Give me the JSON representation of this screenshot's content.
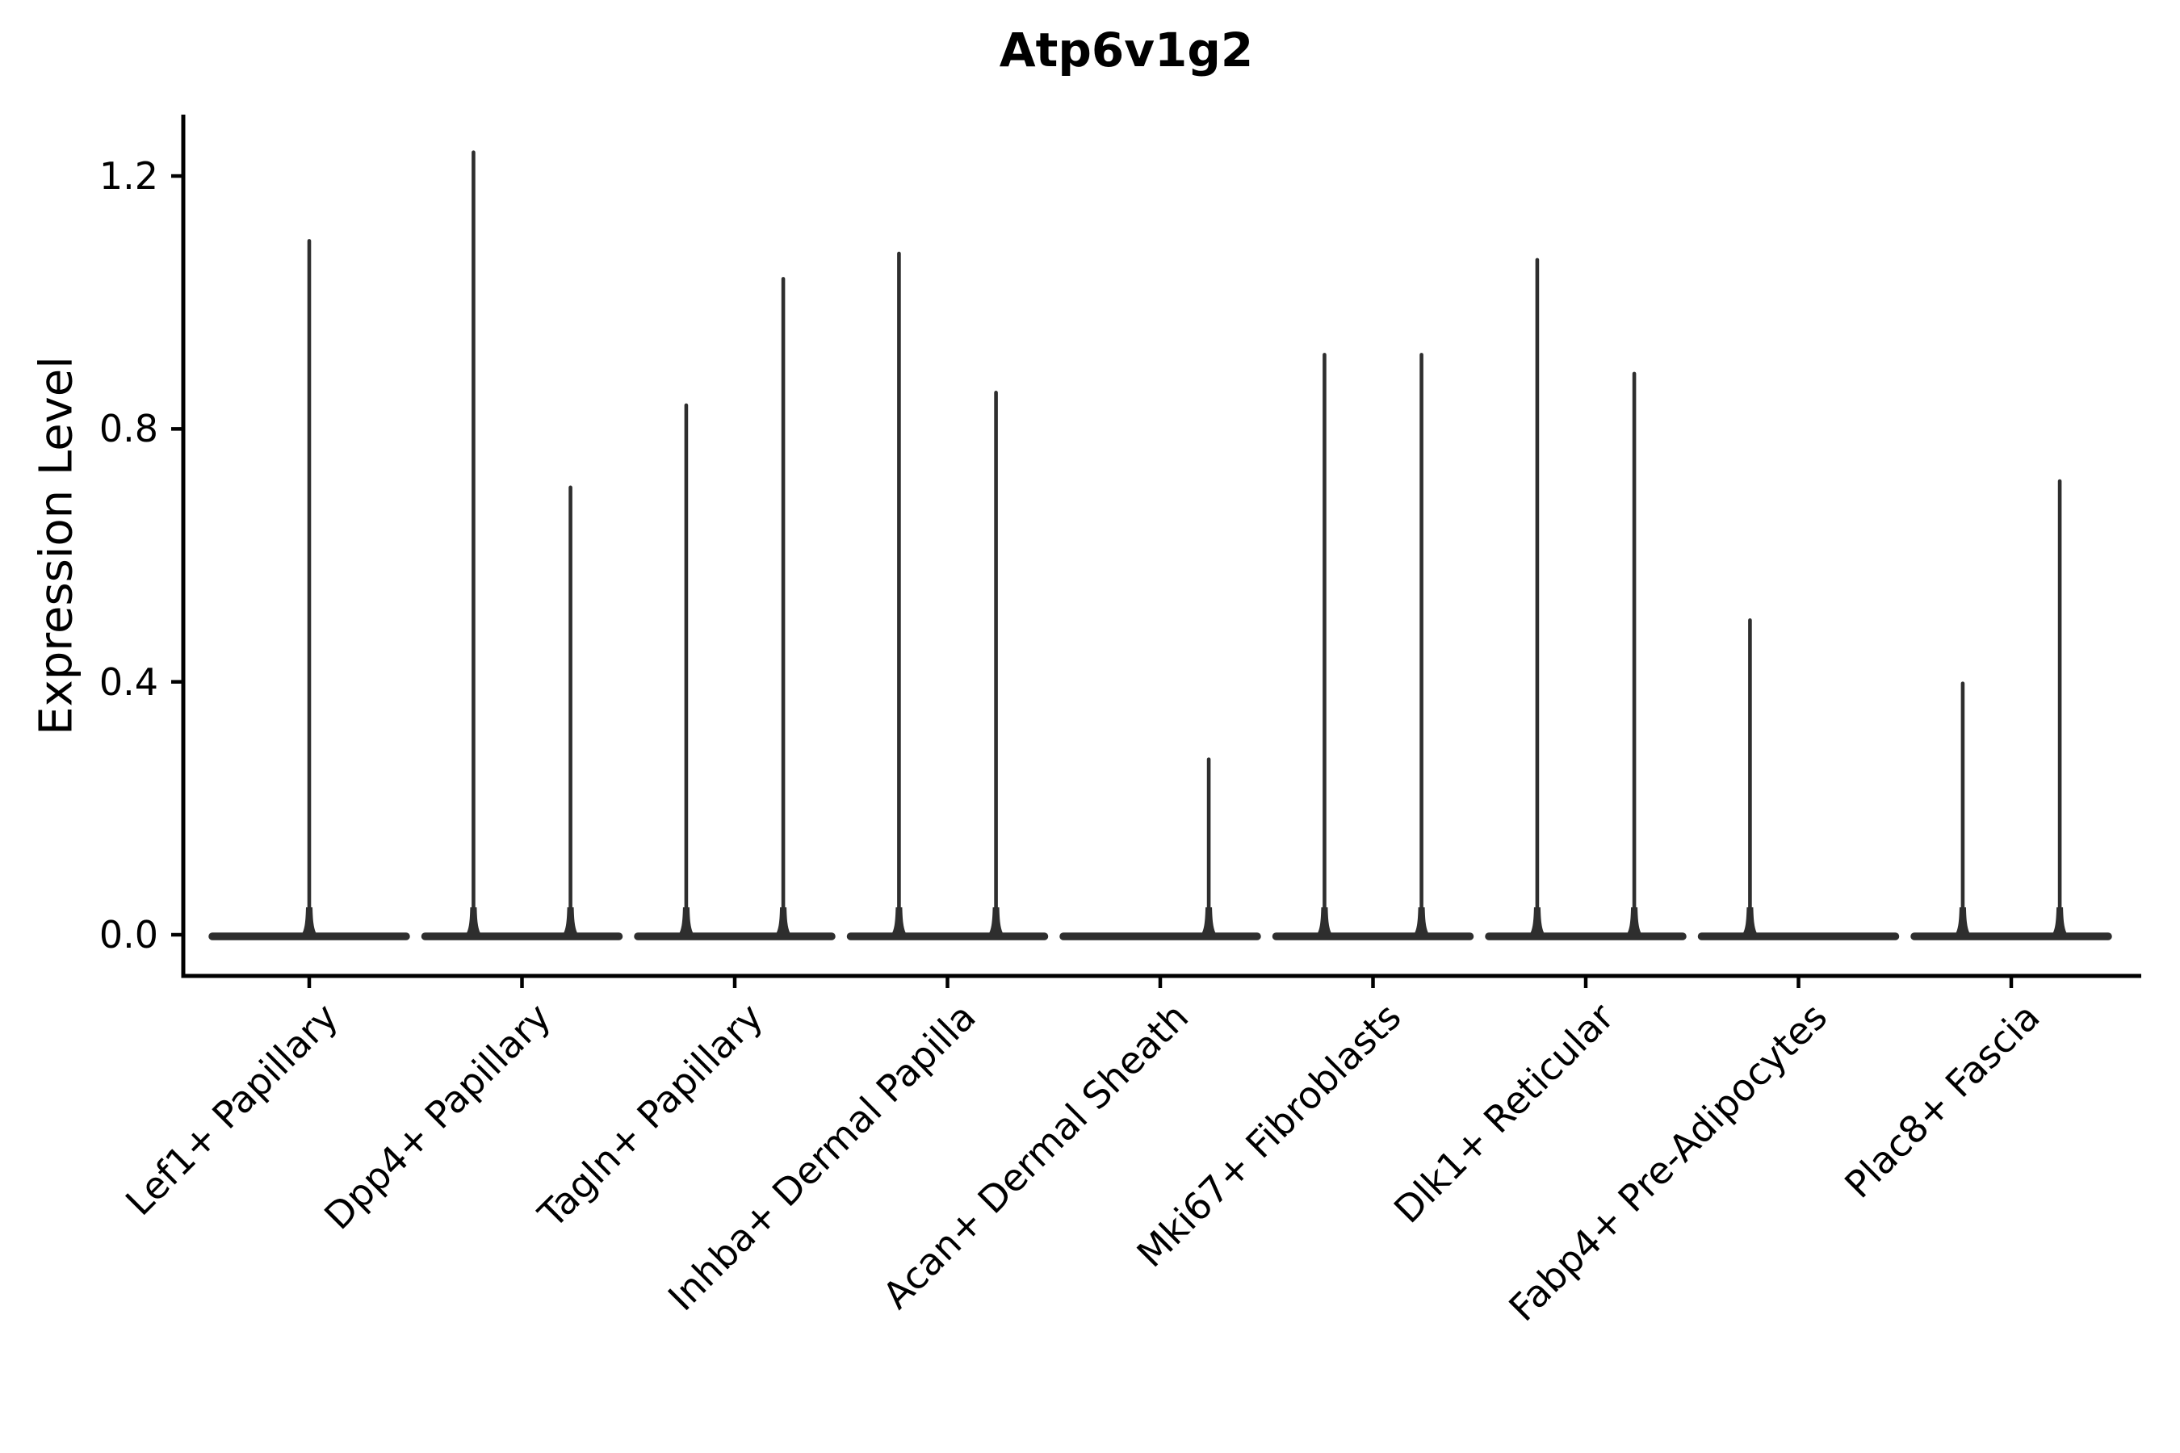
{
  "chart_data": {
    "type": "violin",
    "title": "Atp6v1g2",
    "ylabel": "Expression Level",
    "xlabel": "",
    "ytick_labels": [
      "0.0",
      "0.4",
      "0.8",
      "1.2"
    ],
    "ytick_values": [
      0.0,
      0.4,
      0.8,
      1.2
    ],
    "ylim": [
      -0.06,
      1.31
    ],
    "grid": false,
    "legend": null,
    "colors": {
      "violin_line": "#2e2e2e",
      "axis": "#000000",
      "text": "#000000",
      "background": "#ffffff"
    },
    "violins": [
      {
        "category": "Lef1+ Papillary",
        "spikes": [
          {
            "offset": 0.0,
            "max": 1.1
          }
        ]
      },
      {
        "category": "Dpp4+ Papillary",
        "spikes": [
          {
            "offset": -0.228,
            "max": 1.24
          },
          {
            "offset": 0.228,
            "max": 0.71
          }
        ]
      },
      {
        "category": "Tagln+ Papillary",
        "spikes": [
          {
            "offset": -0.228,
            "max": 0.84
          },
          {
            "offset": 0.228,
            "max": 1.04
          }
        ]
      },
      {
        "category": "Inhba+ Dermal Papilla",
        "spikes": [
          {
            "offset": -0.228,
            "max": 1.08
          },
          {
            "offset": 0.228,
            "max": 0.86
          }
        ]
      },
      {
        "category": "Acan+ Dermal Sheath",
        "spikes": [
          {
            "offset": 0.228,
            "max": 0.28
          }
        ]
      },
      {
        "category": "Mki67+ Fibroblasts",
        "spikes": [
          {
            "offset": -0.228,
            "max": 0.92
          },
          {
            "offset": 0.228,
            "max": 0.92
          }
        ]
      },
      {
        "category": "Dlk1+ Reticular",
        "spikes": [
          {
            "offset": -0.228,
            "max": 1.07
          },
          {
            "offset": 0.228,
            "max": 0.89
          }
        ]
      },
      {
        "category": "Fabp4+ Pre-Adipocytes",
        "spikes": [
          {
            "offset": -0.228,
            "max": 0.5
          }
        ]
      },
      {
        "category": "Plac8+ Fascia",
        "spikes": [
          {
            "offset": -0.228,
            "max": 0.4
          },
          {
            "offset": 0.228,
            "max": 0.72
          }
        ]
      }
    ]
  }
}
